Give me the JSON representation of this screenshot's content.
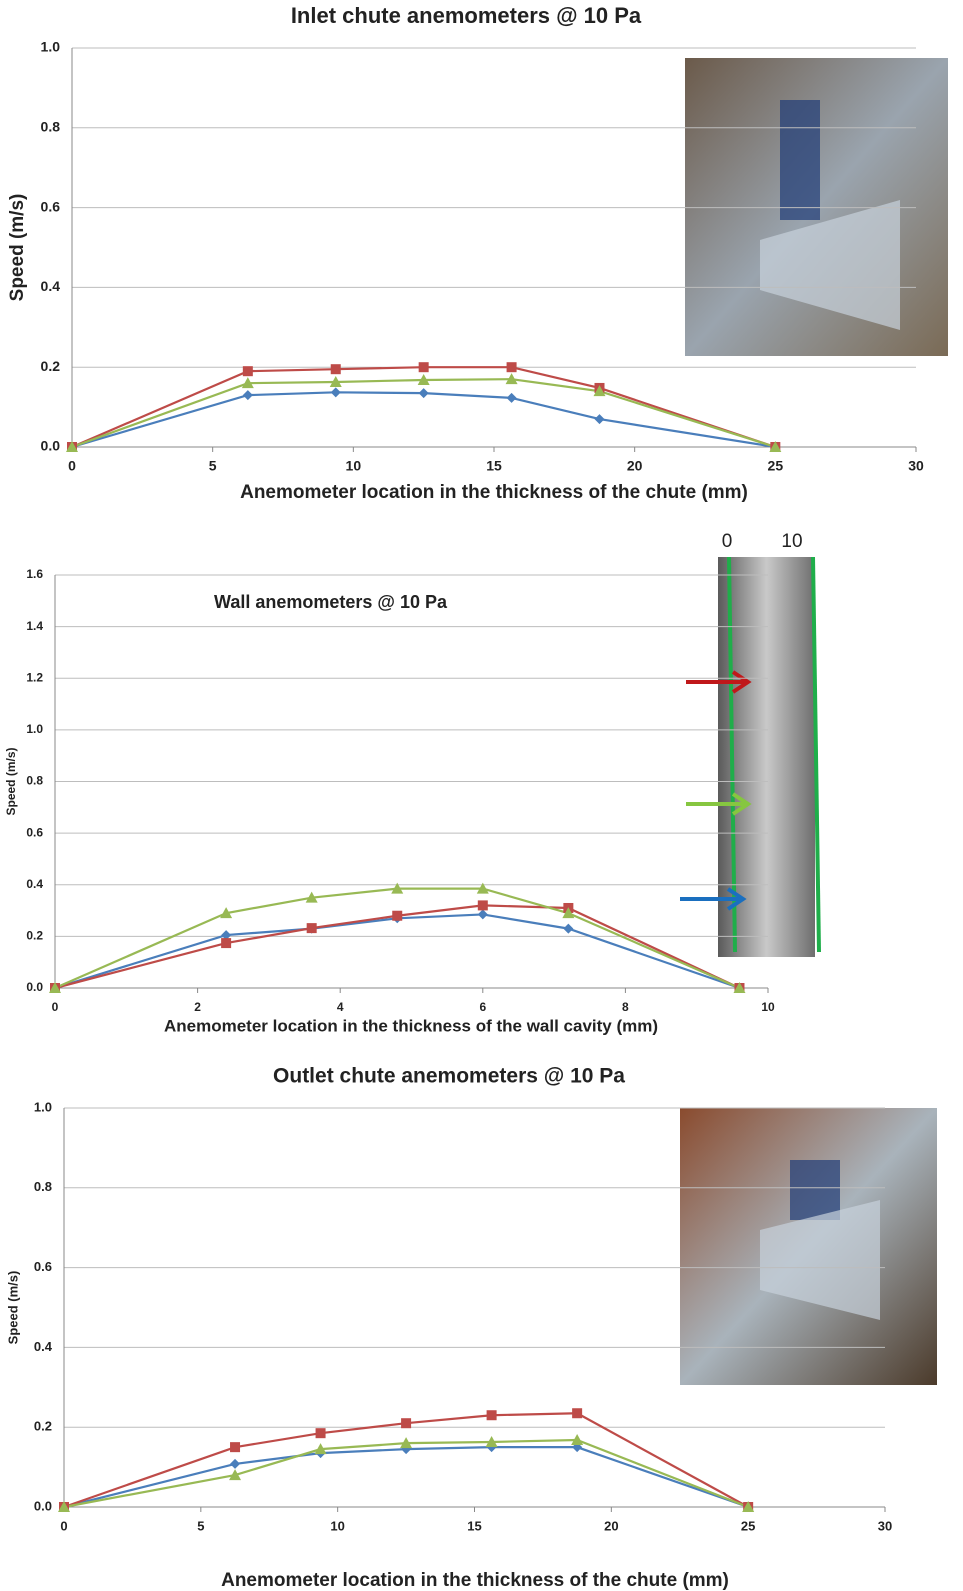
{
  "chart_data": [
    {
      "type": "line",
      "title": "Inlet chute anemometers @ 10 Pa",
      "x_label": "Anemometer  location  in the thickness  of the chute (mm)",
      "y_label": "Speed (m/s)",
      "x": [
        0,
        6.25,
        9.375,
        12.5,
        15.625,
        18.75,
        25
      ],
      "series": [
        {
          "color": "#4a7ebb",
          "marker": "diamond",
          "values": [
            0,
            0.13,
            0.137,
            0.135,
            0.123,
            0.07,
            0
          ]
        },
        {
          "color": "#be4b48",
          "marker": "square",
          "values": [
            0,
            0.19,
            0.195,
            0.2,
            0.2,
            0.148,
            0
          ]
        },
        {
          "color": "#98b954",
          "marker": "triangle",
          "values": [
            0,
            0.16,
            0.163,
            0.168,
            0.17,
            0.14,
            0
          ]
        }
      ],
      "xlim": [
        0,
        30
      ],
      "xticks": [
        0,
        5,
        10,
        15,
        20,
        25,
        30
      ],
      "ylim": [
        0,
        1
      ],
      "yticks": [
        {
          "value": 0,
          "label": "0.0"
        },
        0.2,
        0.4,
        0.6,
        0.8,
        {
          "value": 1,
          "label": "1.0"
        }
      ],
      "grid": true
    },
    {
      "type": "line",
      "title": "Wall anemometers @ 10 Pa",
      "x_label": "Anemometer location in the thickness of the wall cavity (mm)",
      "y_label": "Speed (m/s)",
      "annotations": [
        "0",
        "10"
      ],
      "x": [
        0,
        2.4,
        3.6,
        4.8,
        6.0,
        7.2,
        9.6
      ],
      "series": [
        {
          "color": "#4a7ebb",
          "marker": "diamond",
          "values": [
            0,
            0.205,
            0.23,
            0.27,
            0.285,
            0.23,
            0
          ]
        },
        {
          "color": "#be4b48",
          "marker": "square",
          "values": [
            0,
            0.174,
            0.232,
            0.28,
            0.32,
            0.31,
            0
          ]
        },
        {
          "color": "#98b954",
          "marker": "triangle",
          "values": [
            0,
            0.29,
            0.35,
            0.385,
            0.385,
            0.29,
            0
          ]
        }
      ],
      "xlim": [
        0,
        10
      ],
      "xticks": [
        0,
        2,
        4,
        6,
        8,
        10
      ],
      "ylim": [
        0,
        1.6
      ],
      "yticks": [
        {
          "value": 0,
          "label": "0.0"
        },
        0.2,
        0.4,
        0.6,
        0.8,
        {
          "value": 1,
          "label": "1.0"
        },
        1.2,
        1.4,
        1.6
      ],
      "grid": true
    },
    {
      "type": "line",
      "title": "Outlet chute anemometers @ 10 Pa",
      "x_label": "Anemometer  location  in the thickness  of the chute (mm)",
      "y_label": "Speed (m/s)",
      "x": [
        0,
        6.25,
        9.375,
        12.5,
        15.625,
        18.75,
        25
      ],
      "series": [
        {
          "color": "#4a7ebb",
          "marker": "diamond",
          "values": [
            0,
            0.108,
            0.135,
            0.145,
            0.15,
            0.15,
            0
          ]
        },
        {
          "color": "#be4b48",
          "marker": "square",
          "values": [
            0,
            0.15,
            0.185,
            0.21,
            0.23,
            0.235,
            0
          ]
        },
        {
          "color": "#98b954",
          "marker": "triangle",
          "values": [
            0,
            0.08,
            0.145,
            0.16,
            0.163,
            0.168,
            0
          ]
        }
      ],
      "xlim": [
        0,
        30
      ],
      "xticks": [
        0,
        5,
        10,
        15,
        20,
        25,
        30
      ],
      "ylim": [
        0,
        1
      ],
      "yticks": [
        {
          "value": 0,
          "label": "0.0"
        },
        0.2,
        0.4,
        0.6,
        0.8,
        {
          "value": 1,
          "label": "1.0"
        }
      ],
      "grid": true
    }
  ]
}
